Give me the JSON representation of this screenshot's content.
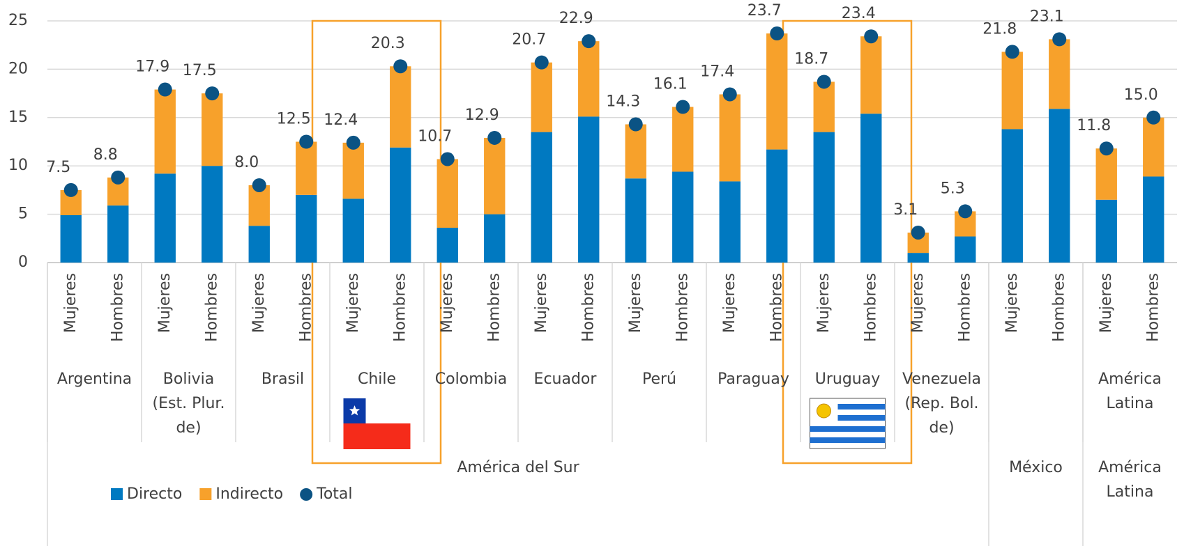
{
  "chart_data": {
    "type": "bar",
    "stacked": true,
    "categories": [
      "Mujeres",
      "Hombres",
      "Mujeres",
      "Hombres",
      "Mujeres",
      "Hombres",
      "Mujeres",
      "Hombres",
      "Mujeres",
      "Hombres",
      "Mujeres",
      "Hombres",
      "Mujeres",
      "Hombres",
      "Mujeres",
      "Hombres",
      "Mujeres",
      "Hombres",
      "Mujeres",
      "Hombres",
      "Mujeres",
      "Hombres",
      "Mujeres",
      "Hombres"
    ],
    "groups": [
      [
        "Argentina"
      ],
      [
        "Bolivia",
        "(Est. Plur.",
        "de)"
      ],
      [
        "Brasil"
      ],
      [
        "Chile"
      ],
      [
        "Colombia"
      ],
      [
        "Ecuador"
      ],
      [
        "Perú"
      ],
      [
        "Paraguay"
      ],
      [
        "Uruguay"
      ],
      [
        "Venezuela",
        "(Rep. Bol.",
        "de)"
      ],
      null,
      [
        "América",
        "Latina"
      ]
    ],
    "supergroups": [
      {
        "label": [
          "América del Sur"
        ],
        "span": 10
      },
      {
        "label": [
          "México"
        ],
        "span": 1
      },
      {
        "label": [
          "América",
          "Latina"
        ],
        "span": 1
      }
    ],
    "series": [
      {
        "name": "Directo",
        "color": "#0079c1",
        "values": [
          4.9,
          5.9,
          9.2,
          10.0,
          3.8,
          7.0,
          6.6,
          11.9,
          3.6,
          5.0,
          13.5,
          15.1,
          8.7,
          9.4,
          8.4,
          11.7,
          13.5,
          15.4,
          1.0,
          2.7,
          13.8,
          15.9,
          6.5,
          8.9
        ]
      },
      {
        "name": "Indirecto",
        "color": "#f7a12b",
        "values": [
          2.6,
          2.9,
          8.7,
          7.5,
          4.2,
          5.5,
          5.8,
          8.4,
          7.1,
          7.9,
          7.2,
          7.8,
          5.6,
          6.7,
          9.0,
          12.0,
          5.2,
          8.0,
          2.1,
          2.6,
          8.0,
          7.2,
          5.3,
          6.1
        ]
      },
      {
        "name": "Total",
        "type": "dot",
        "color": "#0b5384",
        "values": [
          7.5,
          8.8,
          17.9,
          17.5,
          8.0,
          12.5,
          12.4,
          20.3,
          10.7,
          12.9,
          20.7,
          22.9,
          14.3,
          16.1,
          17.4,
          23.7,
          18.7,
          23.4,
          3.1,
          5.3,
          21.8,
          23.1,
          11.8,
          15.0
        ],
        "value_labels": [
          "7.5",
          "8.8",
          "17.9",
          "17.5",
          "8.0",
          "12.5",
          "12.4",
          "20.3",
          "10.7",
          "12.9",
          "20.7",
          "22.9",
          "14.3",
          "16.1",
          "17.4",
          "23.7",
          "18.7",
          "23.4",
          "3.1",
          "5.3",
          "21.8",
          "23.1",
          "11.8",
          "15.0"
        ]
      }
    ],
    "ylim": [
      0,
      25
    ],
    "yticks": [
      0,
      5,
      10,
      15,
      20,
      25
    ],
    "grid": true,
    "legend": "bottom-left"
  }
}
